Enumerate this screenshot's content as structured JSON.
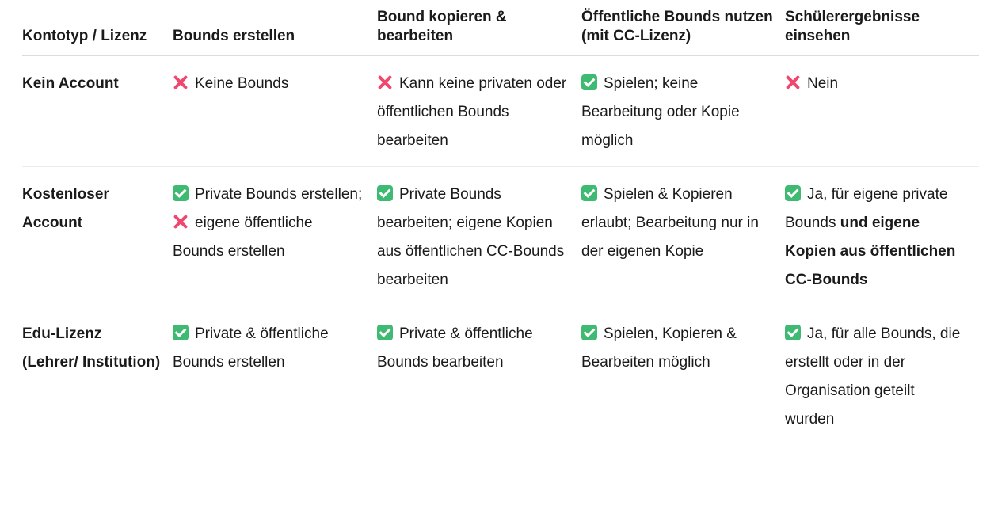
{
  "headers": [
    "Kontotyp / Lizenz",
    "Bounds erstellen",
    "Bound kopieren & bearbeiten",
    "Öffentliche Bounds nutzen (mit CC-Lizenz)",
    "Schülerergebnisse einsehen"
  ],
  "icons": {
    "check": "check-mark-button-icon",
    "cross": "cross-mark-icon"
  },
  "colors": {
    "check": "#3fba72",
    "cross": "#f0476e"
  },
  "rows": [
    {
      "label": "Kein Account",
      "cells": [
        [
          {
            "icon": "cross"
          },
          {
            "text": "Keine Bounds"
          }
        ],
        [
          {
            "icon": "cross"
          },
          {
            "text": "Kann keine privaten oder öffentlichen Bounds bearbeiten"
          }
        ],
        [
          {
            "icon": "check"
          },
          {
            "text": "Spielen; keine Bearbeitung oder Kopie möglich"
          }
        ],
        [
          {
            "icon": "cross"
          },
          {
            "text": "Nein"
          }
        ]
      ]
    },
    {
      "label": "Kostenloser Account",
      "cells": [
        [
          {
            "icon": "check"
          },
          {
            "text": "Private Bounds erstellen; "
          },
          {
            "icon": "cross"
          },
          {
            "text": "eigene öffentliche Bounds erstellen"
          }
        ],
        [
          {
            "icon": "check"
          },
          {
            "text": "Private Bounds bearbeiten; eigene Kopien aus öffentlichen CC-Bounds bearbeiten"
          }
        ],
        [
          {
            "icon": "check"
          },
          {
            "text": "Spielen & Kopieren erlaubt; Bearbeitung nur in der eigenen Kopie"
          }
        ],
        [
          {
            "icon": "check"
          },
          {
            "text": "Ja, für eigene private Bounds "
          },
          {
            "text": "und eigene Kopien aus öffentlichen CC-Bounds",
            "bold": true
          }
        ]
      ]
    },
    {
      "label": "Edu-Lizenz (Lehrer/ Institution)",
      "cells": [
        [
          {
            "icon": "check"
          },
          {
            "text": "Private & öffentliche Bounds erstellen"
          }
        ],
        [
          {
            "icon": "check"
          },
          {
            "text": "Private & öffentliche Bounds bearbeiten"
          }
        ],
        [
          {
            "icon": "check"
          },
          {
            "text": "Spielen, Kopieren & Bearbeiten möglich"
          }
        ],
        [
          {
            "icon": "check"
          },
          {
            "text": "Ja, für alle Bounds, die erstellt oder in der Organisation geteilt wurden"
          }
        ]
      ]
    }
  ]
}
